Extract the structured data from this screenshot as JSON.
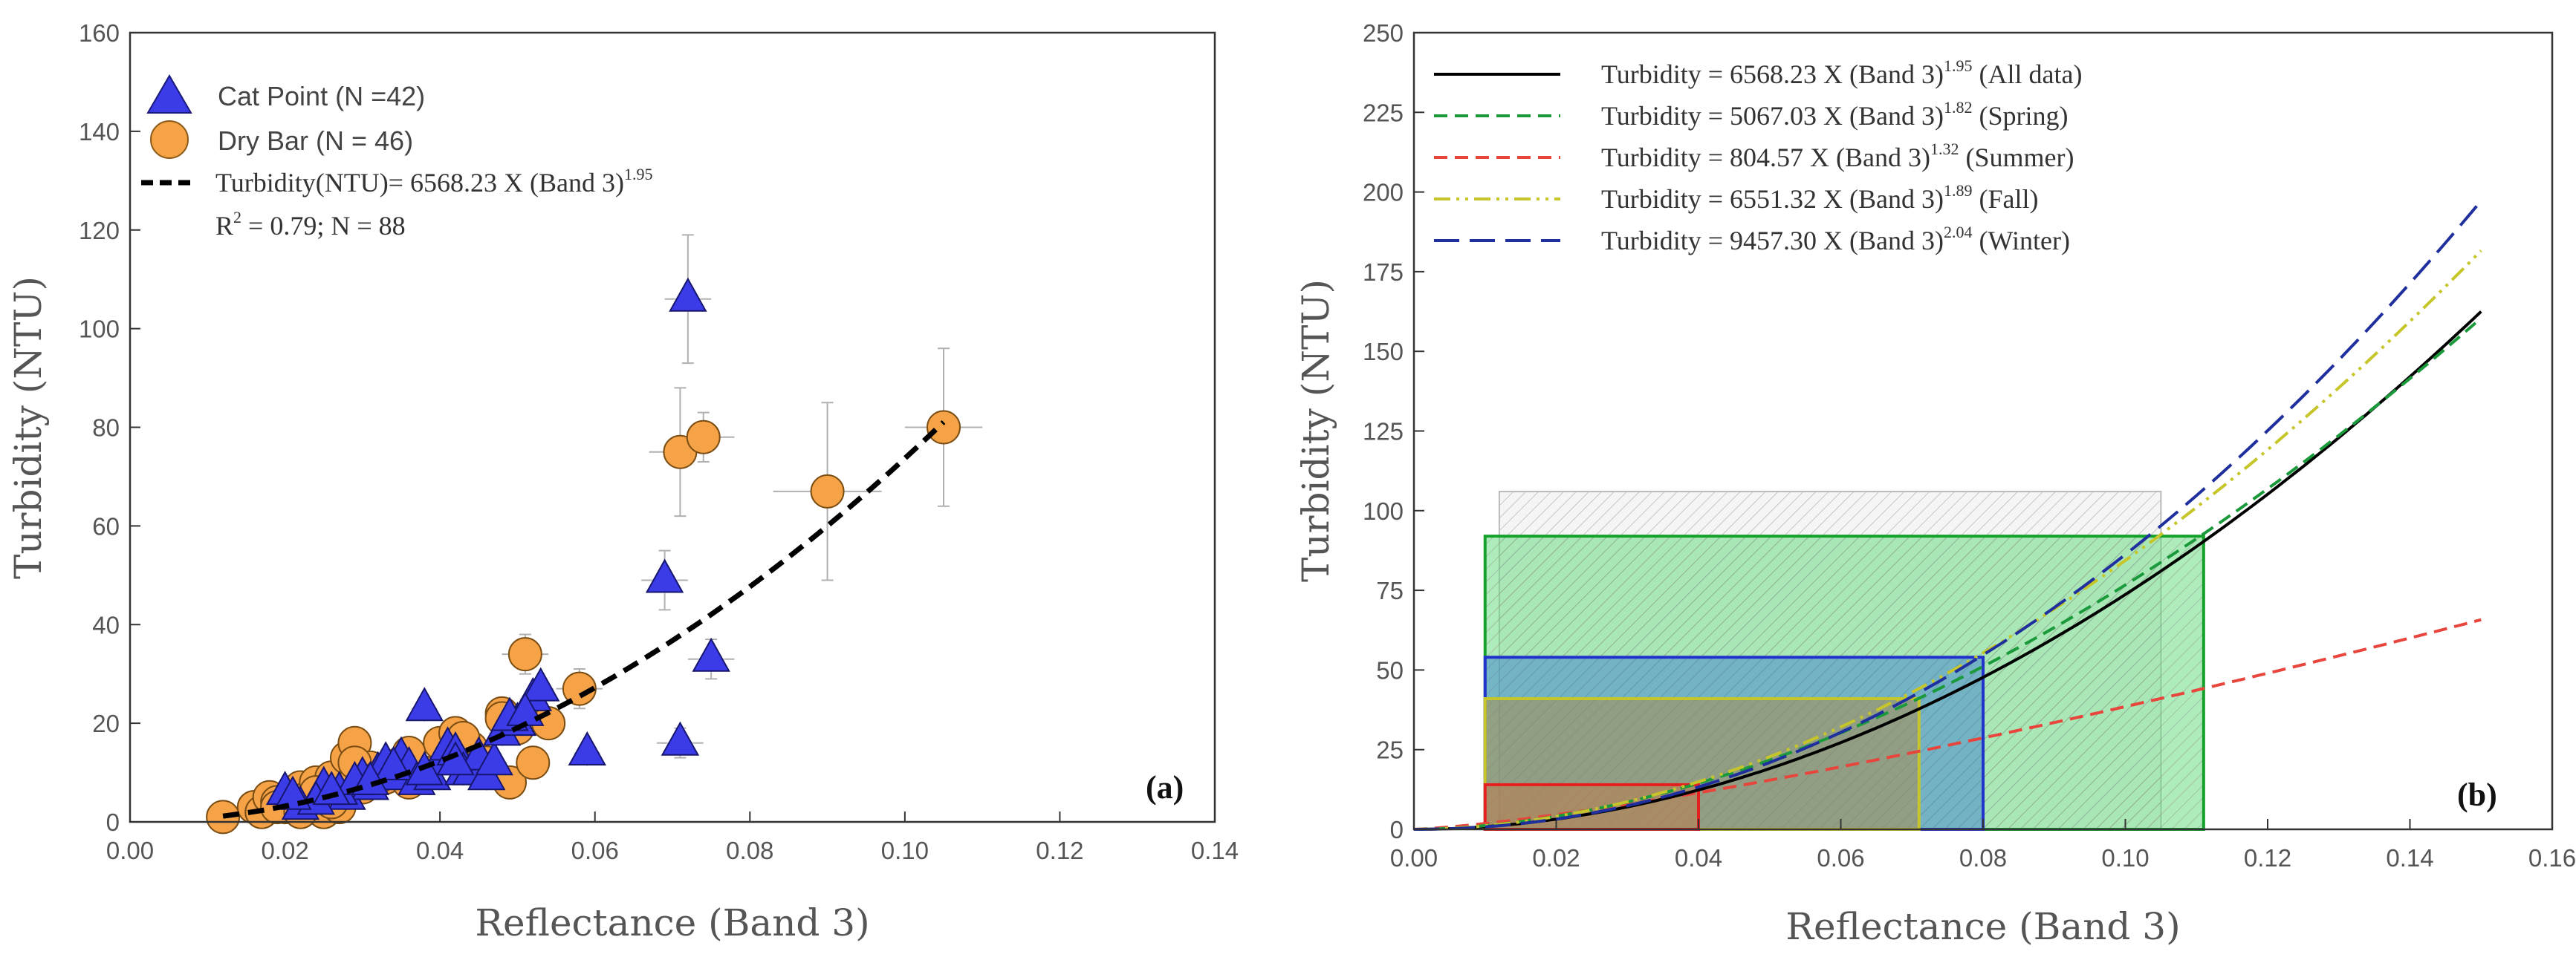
{
  "chart_data": [
    {
      "type": "scatter",
      "panel_label": "(a)",
      "xlabel": "Reflectance (Band 3)",
      "ylabel": "Turbidity (NTU)",
      "xlim": [
        0.0,
        0.14
      ],
      "ylim": [
        0,
        160
      ],
      "xticks": [
        "0.00",
        "0.02",
        "0.04",
        "0.06",
        "0.08",
        "0.10",
        "0.12",
        "0.14"
      ],
      "yticks": [
        "0",
        "20",
        "40",
        "60",
        "80",
        "100",
        "120",
        "140",
        "160"
      ],
      "legend": {
        "cat_point": "Cat Point (N =42)",
        "dry_bar": "Dry Bar (N = 46)",
        "fit_main": "Turbidity(NTU)= 6568.23 X (Band 3)",
        "fit_exp": "1.95",
        "fit_stats": "R",
        "fit_stats_exp": "2",
        "fit_stats_rest": " = 0.79; N = 88"
      },
      "fit": {
        "coef": 6568.23,
        "exp": 1.95,
        "x_range": [
          0.012,
          0.105
        ]
      },
      "colors": {
        "cat_point": "#3b3be8",
        "dry_bar": "#f6a347",
        "fit": "#000000"
      },
      "series": [
        {
          "name": "Cat Point",
          "marker": "triangle",
          "points": [
            [
              0.02,
              6
            ],
            [
              0.022,
              3
            ],
            [
              0.025,
              7
            ],
            [
              0.028,
              5
            ],
            [
              0.03,
              9
            ],
            [
              0.031,
              7
            ],
            [
              0.032,
              10
            ],
            [
              0.033,
              12
            ],
            [
              0.034,
              9
            ],
            [
              0.035,
              13
            ],
            [
              0.036,
              11
            ],
            [
              0.037,
              8
            ],
            [
              0.038,
              23
            ],
            [
              0.039,
              9
            ],
            [
              0.04,
              12
            ],
            [
              0.041,
              15
            ],
            [
              0.042,
              14
            ],
            [
              0.043,
              10
            ],
            [
              0.044,
              10
            ],
            [
              0.045,
              13
            ],
            [
              0.046,
              9
            ],
            [
              0.047,
              12
            ],
            [
              0.048,
              18
            ],
            [
              0.05,
              20
            ],
            [
              0.052,
              25
            ],
            [
              0.053,
              27
            ],
            [
              0.059,
              14
            ],
            [
              0.069,
              49
            ],
            [
              0.071,
              16
            ],
            [
              0.072,
              106
            ],
            [
              0.075,
              33
            ],
            [
              0.024,
              4
            ],
            [
              0.027,
              6
            ],
            [
              0.029,
              8
            ],
            [
              0.021,
              5
            ],
            [
              0.026,
              6
            ],
            [
              0.034,
              11
            ],
            [
              0.038,
              10
            ],
            [
              0.049,
              21
            ],
            [
              0.051,
              22
            ],
            [
              0.042,
              12
            ],
            [
              0.031,
              8
            ]
          ],
          "error_points": [
            [
              0.072,
              106,
              0.003,
              13
            ],
            [
              0.069,
              49,
              0.003,
              6
            ],
            [
              0.075,
              33,
              0.003,
              4
            ],
            [
              0.071,
              16,
              0.003,
              3
            ]
          ]
        },
        {
          "name": "Dry Bar",
          "marker": "circle",
          "points": [
            [
              0.012,
              1
            ],
            [
              0.016,
              3
            ],
            [
              0.017,
              2
            ],
            [
              0.018,
              5
            ],
            [
              0.019,
              4
            ],
            [
              0.02,
              3
            ],
            [
              0.021,
              6
            ],
            [
              0.022,
              7
            ],
            [
              0.023,
              5
            ],
            [
              0.024,
              8
            ],
            [
              0.025,
              2
            ],
            [
              0.026,
              9
            ],
            [
              0.027,
              3
            ],
            [
              0.028,
              13
            ],
            [
              0.029,
              16
            ],
            [
              0.03,
              7
            ],
            [
              0.031,
              11
            ],
            [
              0.033,
              9
            ],
            [
              0.034,
              10
            ],
            [
              0.035,
              12
            ],
            [
              0.036,
              8
            ],
            [
              0.038,
              10
            ],
            [
              0.04,
              16
            ],
            [
              0.042,
              18
            ],
            [
              0.044,
              15
            ],
            [
              0.046,
              12
            ],
            [
              0.048,
              22
            ],
            [
              0.049,
              8
            ],
            [
              0.05,
              19
            ],
            [
              0.051,
              34
            ],
            [
              0.052,
              12
            ],
            [
              0.054,
              20
            ],
            [
              0.058,
              27
            ],
            [
              0.071,
              75
            ],
            [
              0.074,
              78
            ],
            [
              0.09,
              67
            ],
            [
              0.105,
              80
            ],
            [
              0.019,
              3
            ],
            [
              0.022,
              2
            ],
            [
              0.024,
              6
            ],
            [
              0.026,
              4
            ],
            [
              0.029,
              12
            ],
            [
              0.032,
              9
            ],
            [
              0.036,
              14
            ],
            [
              0.043,
              17
            ],
            [
              0.048,
              21
            ]
          ],
          "error_points": [
            [
              0.071,
              75,
              0.004,
              13
            ],
            [
              0.074,
              78,
              0.004,
              5
            ],
            [
              0.09,
              67,
              0.007,
              18
            ],
            [
              0.105,
              80,
              0.005,
              16
            ],
            [
              0.051,
              34,
              0.003,
              4
            ],
            [
              0.058,
              27,
              0.003,
              4
            ]
          ]
        }
      ]
    },
    {
      "type": "line",
      "panel_label": "(b)",
      "xlabel": "Reflectance (Band 3)",
      "ylabel": "Turbidity (NTU)",
      "xlim": [
        0.0,
        0.16
      ],
      "ylim": [
        0,
        250
      ],
      "xticks": [
        "0.00",
        "0.02",
        "0.04",
        "0.06",
        "0.08",
        "0.10",
        "0.12",
        "0.14",
        "0.16"
      ],
      "yticks": [
        "0",
        "25",
        "50",
        "75",
        "100",
        "125",
        "150",
        "175",
        "200",
        "225",
        "250"
      ],
      "series": [
        {
          "name": "All data",
          "label": "Turbidity = 6568.23 X (Band 3)",
          "exp_label": "1.95",
          "season": " (All data)",
          "coef": 6568.23,
          "exp": 1.95,
          "color": "#000000",
          "dash": "none"
        },
        {
          "name": "Spring",
          "label": "Turbidity  = 5067.03 X (Band 3)",
          "exp_label": "1.82",
          "season": " (Spring)",
          "coef": 5067.03,
          "exp": 1.82,
          "color": "#1a9a3a",
          "dash": "18,10"
        },
        {
          "name": "Summer",
          "label": "Turbidity = 804.57 X (Band 3)",
          "exp_label": "1.32",
          "season": " (Summer)",
          "coef": 804.57,
          "exp": 1.32,
          "color": "#e8453c",
          "dash": "18,10"
        },
        {
          "name": "Fall",
          "label": "Turbidity = 6551.32 X (Band 3)",
          "exp_label": "1.89",
          "season": " (Fall)",
          "coef": 6551.32,
          "exp": 1.89,
          "color": "#c6c62a",
          "dash": "22,8,4,8,4,8"
        },
        {
          "name": "Winter",
          "label": "Turbidity = 9457.30 X (Band 3)",
          "exp_label": "2.04",
          "season": " (Winter)",
          "coef": 9457.3,
          "exp": 2.04,
          "color": "#1f2f9e",
          "dash": "34,14"
        }
      ],
      "x_range": [
        0.0,
        0.15
      ],
      "rectangles": [
        {
          "name": "All data",
          "x": [
            0.012,
            0.105
          ],
          "y": [
            0,
            106
          ],
          "stroke": "#bbbbbb",
          "fill": "#e2e2e2",
          "hatch": true
        },
        {
          "name": "Spring",
          "x": [
            0.01,
            0.111
          ],
          "y": [
            0,
            92
          ],
          "stroke": "#16a02c",
          "fill": "#5fd978",
          "hatch": true
        },
        {
          "name": "Winter",
          "x": [
            0.01,
            0.08
          ],
          "y": [
            0,
            54
          ],
          "stroke": "#2233cc",
          "fill": "#3b7fd0",
          "hatch": false
        },
        {
          "name": "Fall",
          "x": [
            0.01,
            0.071
          ],
          "y": [
            0,
            41
          ],
          "stroke": "#c6c62a",
          "fill": "#b08a44",
          "hatch": false
        },
        {
          "name": "Summer",
          "x": [
            0.01,
            0.04
          ],
          "y": [
            0,
            14
          ],
          "stroke": "#e52020",
          "fill": "#c07a4a",
          "hatch": false
        }
      ]
    }
  ]
}
